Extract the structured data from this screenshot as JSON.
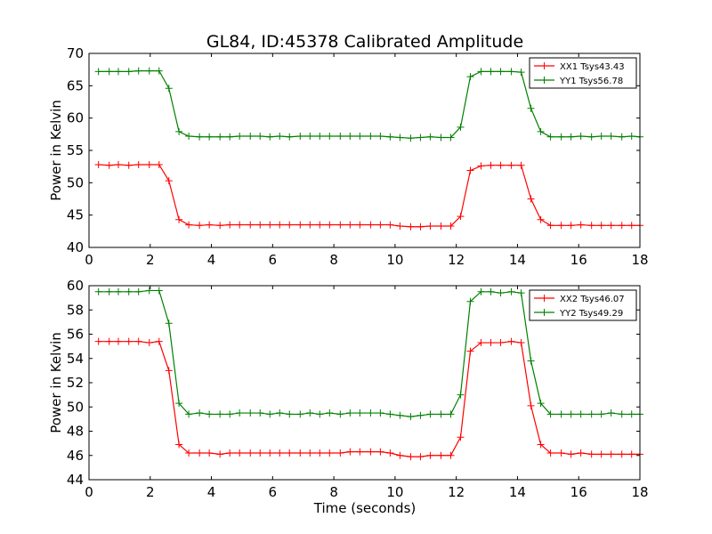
{
  "chart_data": [
    {
      "type": "line",
      "title": "GL84, ID:45378 Calibrated Amplitude",
      "xlabel": "",
      "ylabel": "Power in Kelvin",
      "xlim": [
        0,
        18
      ],
      "ylim": [
        40,
        70
      ],
      "xticks": [
        0,
        2,
        4,
        6,
        8,
        10,
        12,
        14,
        16,
        18
      ],
      "yticks": [
        40,
        45,
        50,
        55,
        60,
        65,
        70
      ],
      "grid": false,
      "legend": "top-right",
      "x": [
        0.31,
        0.66,
        0.96,
        1.3,
        1.62,
        1.97,
        2.29,
        2.61,
        2.94,
        3.26,
        3.61,
        3.93,
        4.28,
        4.6,
        4.92,
        5.27,
        5.59,
        5.91,
        6.23,
        6.55,
        6.9,
        7.22,
        7.54,
        7.86,
        8.21,
        8.53,
        8.85,
        9.2,
        9.52,
        9.84,
        10.16,
        10.51,
        10.83,
        11.15,
        11.5,
        11.82,
        12.14,
        12.46,
        12.81,
        13.13,
        13.45,
        13.8,
        14.12,
        14.44,
        14.76,
        15.08,
        15.43,
        15.75,
        16.07,
        16.42,
        16.74,
        17.06,
        17.41,
        17.73,
        18.0
      ],
      "series": [
        {
          "name": "XX1 Tsys43.43",
          "color": "#ff0000",
          "values": [
            52.8,
            52.7,
            52.8,
            52.7,
            52.8,
            52.8,
            52.8,
            50.3,
            44.3,
            43.5,
            43.4,
            43.5,
            43.4,
            43.5,
            43.5,
            43.5,
            43.5,
            43.5,
            43.5,
            43.5,
            43.5,
            43.5,
            43.5,
            43.5,
            43.5,
            43.5,
            43.5,
            43.5,
            43.5,
            43.5,
            43.3,
            43.2,
            43.2,
            43.3,
            43.3,
            43.3,
            44.8,
            51.9,
            52.6,
            52.7,
            52.7,
            52.7,
            52.7,
            47.5,
            44.3,
            43.4,
            43.4,
            43.4,
            43.5,
            43.4,
            43.4,
            43.4,
            43.4,
            43.4,
            43.4
          ]
        },
        {
          "name": "YY1 Tsys56.78",
          "color": "#008000",
          "values": [
            67.2,
            67.2,
            67.2,
            67.2,
            67.3,
            67.3,
            67.3,
            64.6,
            57.9,
            57.2,
            57.1,
            57.1,
            57.1,
            57.1,
            57.2,
            57.2,
            57.2,
            57.1,
            57.2,
            57.1,
            57.2,
            57.2,
            57.2,
            57.2,
            57.2,
            57.2,
            57.2,
            57.2,
            57.2,
            57.1,
            57.0,
            56.9,
            57.0,
            57.1,
            57.0,
            57.0,
            58.6,
            66.4,
            67.2,
            67.2,
            67.2,
            67.2,
            67.1,
            61.5,
            57.9,
            57.1,
            57.1,
            57.1,
            57.2,
            57.1,
            57.2,
            57.2,
            57.1,
            57.2,
            57.1
          ]
        }
      ]
    },
    {
      "type": "line",
      "title": "",
      "xlabel": "Time (seconds)",
      "ylabel": "Power in Kelvin",
      "xlim": [
        0,
        18
      ],
      "ylim": [
        44,
        60
      ],
      "xticks": [
        0,
        2,
        4,
        6,
        8,
        10,
        12,
        14,
        16,
        18
      ],
      "yticks": [
        44,
        46,
        48,
        50,
        52,
        54,
        56,
        58,
        60
      ],
      "grid": false,
      "legend": "top-right",
      "x": [
        0.31,
        0.66,
        0.96,
        1.3,
        1.62,
        1.97,
        2.29,
        2.61,
        2.94,
        3.26,
        3.61,
        3.93,
        4.28,
        4.6,
        4.92,
        5.27,
        5.59,
        5.91,
        6.23,
        6.55,
        6.9,
        7.22,
        7.54,
        7.86,
        8.21,
        8.53,
        8.85,
        9.2,
        9.52,
        9.84,
        10.16,
        10.51,
        10.83,
        11.15,
        11.5,
        11.82,
        12.14,
        12.46,
        12.81,
        13.13,
        13.45,
        13.8,
        14.12,
        14.44,
        14.76,
        15.08,
        15.43,
        15.75,
        16.07,
        16.42,
        16.74,
        17.06,
        17.41,
        17.73,
        18.0
      ],
      "series": [
        {
          "name": "XX2 Tsys46.07",
          "color": "#ff0000",
          "values": [
            55.4,
            55.4,
            55.4,
            55.4,
            55.4,
            55.3,
            55.4,
            53.0,
            46.9,
            46.2,
            46.2,
            46.2,
            46.1,
            46.2,
            46.2,
            46.2,
            46.2,
            46.2,
            46.2,
            46.2,
            46.2,
            46.2,
            46.2,
            46.2,
            46.2,
            46.3,
            46.3,
            46.3,
            46.3,
            46.2,
            46.0,
            45.9,
            45.9,
            46.0,
            46.0,
            46.0,
            47.5,
            54.6,
            55.3,
            55.3,
            55.3,
            55.4,
            55.3,
            50.1,
            46.9,
            46.2,
            46.2,
            46.1,
            46.2,
            46.1,
            46.1,
            46.1,
            46.1,
            46.1,
            46.1
          ]
        },
        {
          "name": "YY2 Tsys49.29",
          "color": "#008000",
          "values": [
            59.5,
            59.5,
            59.5,
            59.5,
            59.5,
            59.6,
            59.6,
            56.9,
            50.3,
            49.4,
            49.5,
            49.4,
            49.4,
            49.4,
            49.5,
            49.5,
            49.5,
            49.4,
            49.5,
            49.4,
            49.4,
            49.5,
            49.4,
            49.5,
            49.4,
            49.5,
            49.5,
            49.5,
            49.5,
            49.4,
            49.3,
            49.2,
            49.3,
            49.4,
            49.4,
            49.4,
            51.0,
            58.7,
            59.5,
            59.5,
            59.4,
            59.5,
            59.4,
            53.8,
            50.3,
            49.4,
            49.4,
            49.4,
            49.4,
            49.4,
            49.4,
            49.5,
            49.4,
            49.4,
            49.4
          ]
        }
      ]
    }
  ]
}
